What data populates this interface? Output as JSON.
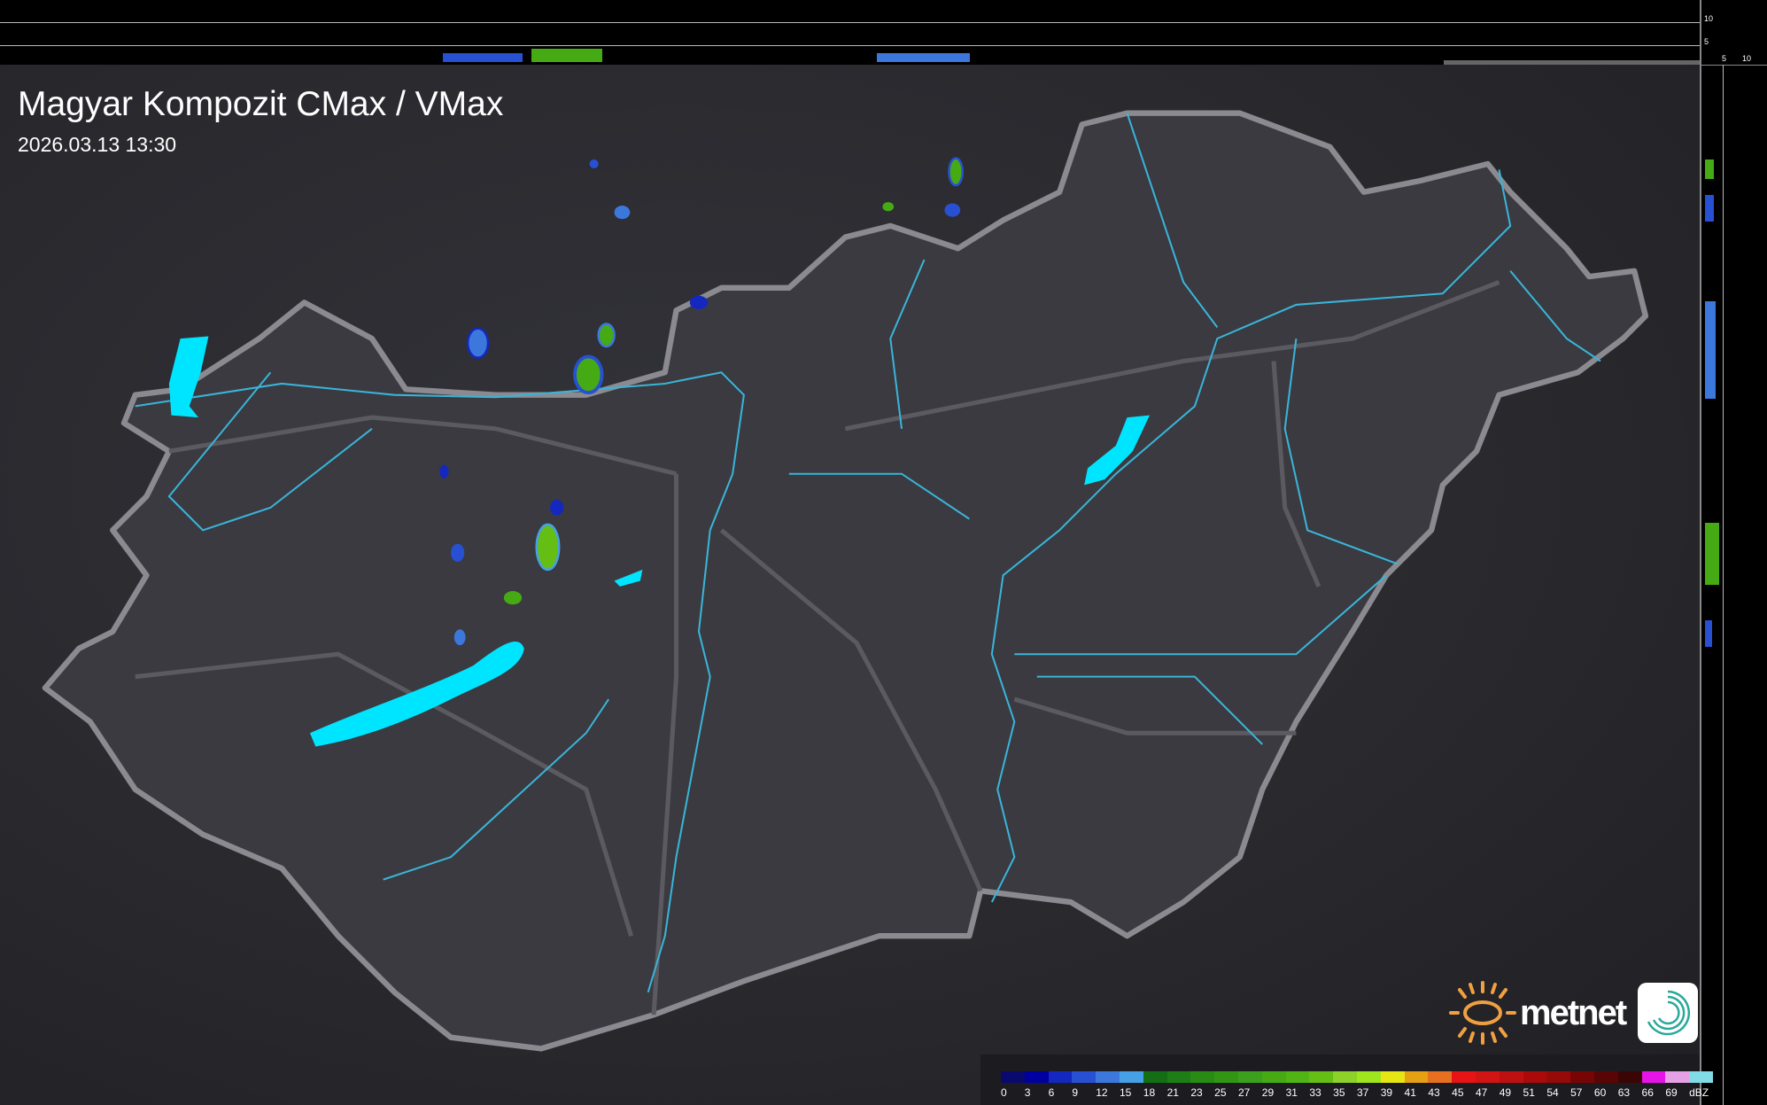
{
  "title": "Magyar Kompozit CMax / VMax",
  "timestamp": "2026.03.13 13:30",
  "side_scale": {
    "top_ticks": [
      "10",
      "5"
    ],
    "right_ticks": [
      "5",
      "10"
    ]
  },
  "legend": {
    "unit": "dBZ",
    "labels": [
      "0",
      "3",
      "6",
      "9",
      "12",
      "15",
      "18",
      "21",
      "23",
      "25",
      "27",
      "29",
      "31",
      "33",
      "35",
      "37",
      "39",
      "41",
      "43",
      "45",
      "47",
      "49",
      "51",
      "54",
      "57",
      "60",
      "63",
      "66",
      "69"
    ],
    "colors": [
      "#0a0a6e",
      "#0000a0",
      "#1428c0",
      "#2850d2",
      "#3c78dc",
      "#46a0e6",
      "#146e14",
      "#1e7d14",
      "#288c14",
      "#329614",
      "#3ca01e",
      "#46aa14",
      "#50b414",
      "#64be14",
      "#8cd228",
      "#a0e61e",
      "#e6e614",
      "#e6a014",
      "#e67020",
      "#e61414",
      "#d21414",
      "#be1010",
      "#aa0a0a",
      "#960a0a",
      "#780505",
      "#5a0505",
      "#3c0505",
      "#e614e6",
      "#e6a0e6",
      "#82dce6"
    ]
  },
  "logo": {
    "brand": "metnet",
    "sun_color": "#f0a040",
    "icon_color": "#2aa89a"
  },
  "colors": {
    "border": "#8a8a90",
    "rivers": "#3ab4d8",
    "lakes": "#00e5ff"
  }
}
